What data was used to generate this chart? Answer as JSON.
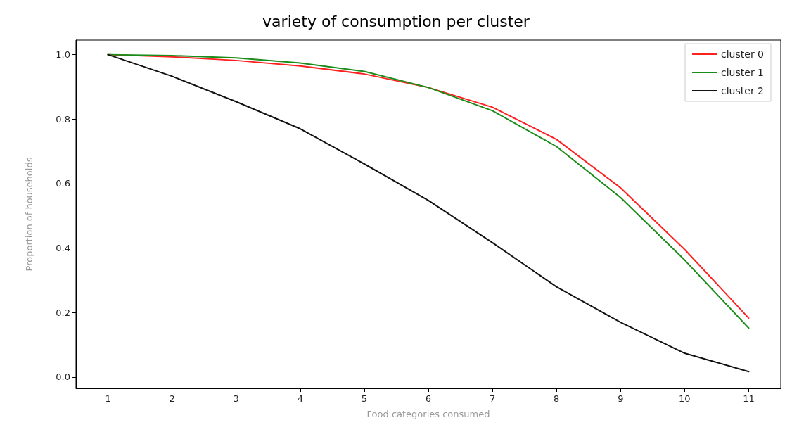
{
  "chart_data": {
    "type": "line",
    "title": "variety of consumption per cluster",
    "xlabel": "Food categories consumed",
    "ylabel": "Proportion of households",
    "x": [
      1,
      2,
      3,
      4,
      5,
      6,
      7,
      8,
      9,
      10,
      11
    ],
    "series": [
      {
        "name": "cluster 0",
        "color": "#ff2020",
        "values": [
          1.0,
          0.993,
          0.982,
          0.965,
          0.94,
          0.898,
          0.837,
          0.737,
          0.587,
          0.396,
          0.183
        ]
      },
      {
        "name": "cluster 1",
        "color": "#1a8c1a",
        "values": [
          1.0,
          0.997,
          0.99,
          0.974,
          0.948,
          0.898,
          0.826,
          0.715,
          0.557,
          0.363,
          0.152
        ]
      },
      {
        "name": "cluster 2",
        "color": "#111111",
        "values": [
          1.0,
          0.933,
          0.854,
          0.77,
          0.661,
          0.548,
          0.417,
          0.28,
          0.17,
          0.074,
          0.017
        ]
      }
    ],
    "xlim": [
      0.5,
      11.5
    ],
    "xticks": [
      1,
      2,
      3,
      4,
      5,
      6,
      7,
      8,
      9,
      10,
      11
    ],
    "ylim": [
      -0.035,
      1.045
    ],
    "yticks": [
      {
        "value": 0,
        "label": "0.0"
      },
      {
        "value": 0.2,
        "label": "0.2"
      },
      {
        "value": 0.4,
        "label": "0.4"
      },
      {
        "value": 0.6,
        "label": "0.6"
      },
      {
        "value": 0.8,
        "label": "0.8"
      },
      {
        "value": 1,
        "label": "1.0"
      }
    ],
    "grid": false,
    "legend": "top right",
    "marker": "none",
    "line_style": "solid"
  }
}
